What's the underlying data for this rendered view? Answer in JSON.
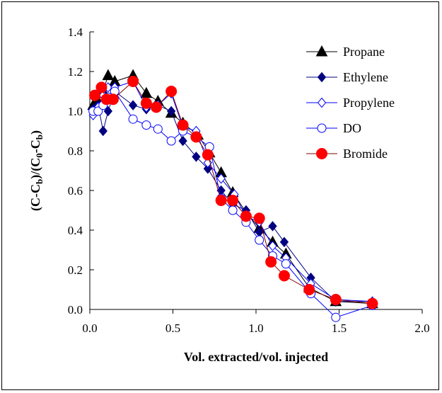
{
  "chart_data": {
    "type": "scatter",
    "title": "",
    "xlabel": "Vol. extracted/vol. injected",
    "ylabel_parts": [
      "(C-C",
      "b",
      ")/(C",
      "0",
      "-C",
      "b",
      ")"
    ],
    "xlim": [
      0,
      2
    ],
    "ylim": [
      0,
      1.4
    ],
    "x_ticks": [
      "0.0",
      "0.5",
      "1.0",
      "1.5",
      "2.0"
    ],
    "y_ticks": [
      "0.0",
      "0.2",
      "0.4",
      "0.6",
      "0.8",
      "1.0",
      "1.2",
      "1.4"
    ],
    "grid": false,
    "legend_position": "top-right",
    "series": [
      {
        "name": "Propane",
        "marker": "triangle",
        "color": "#000000",
        "filled": true,
        "points": [
          [
            0.02,
            1.03
          ],
          [
            0.05,
            1.05
          ],
          [
            0.08,
            1.1
          ],
          [
            0.11,
            1.18
          ],
          [
            0.15,
            1.15
          ],
          [
            0.26,
            1.18
          ],
          [
            0.34,
            1.09
          ],
          [
            0.41,
            1.05
          ],
          [
            0.49,
            0.99
          ],
          [
            0.56,
            0.94
          ],
          [
            0.65,
            0.88
          ],
          [
            0.72,
            0.79
          ],
          [
            0.79,
            0.69
          ],
          [
            0.86,
            0.59
          ],
          [
            0.94,
            0.49
          ],
          [
            1.02,
            0.41
          ],
          [
            1.1,
            0.34
          ],
          [
            1.18,
            0.28
          ],
          [
            1.32,
            0.11
          ],
          [
            1.48,
            0.04
          ],
          [
            1.7,
            0.03
          ]
        ]
      },
      {
        "name": "Ethylene",
        "marker": "diamond",
        "color": "#000080",
        "filled": true,
        "points": [
          [
            0.02,
            1.01
          ],
          [
            0.05,
            1.03
          ],
          [
            0.08,
            0.9
          ],
          [
            0.11,
            1.0
          ],
          [
            0.15,
            1.1
          ],
          [
            0.26,
            1.03
          ],
          [
            0.34,
            1.01
          ],
          [
            0.41,
            1.03
          ],
          [
            0.49,
            1.0
          ],
          [
            0.56,
            0.85
          ],
          [
            0.64,
            0.77
          ],
          [
            0.71,
            0.71
          ],
          [
            0.79,
            0.6
          ],
          [
            0.86,
            0.53
          ],
          [
            0.94,
            0.5
          ],
          [
            1.02,
            0.39
          ],
          [
            1.1,
            0.42
          ],
          [
            1.17,
            0.34
          ],
          [
            1.33,
            0.16
          ],
          [
            1.48,
            0.04
          ],
          [
            1.7,
            0.04
          ]
        ]
      },
      {
        "name": "Propylene",
        "marker": "diamond",
        "color": "#0000ff",
        "filled": false,
        "points": [
          [
            0.02,
            0.98
          ],
          [
            0.05,
            1.02
          ],
          [
            0.08,
            1.08
          ],
          [
            0.11,
            1.12
          ],
          [
            0.15,
            1.12
          ],
          [
            0.26,
            1.15
          ],
          [
            0.34,
            1.02
          ],
          [
            0.41,
            1.03
          ],
          [
            0.49,
            1.09
          ],
          [
            0.56,
            0.92
          ],
          [
            0.64,
            0.9
          ],
          [
            0.71,
            0.74
          ],
          [
            0.79,
            0.66
          ],
          [
            0.87,
            0.58
          ],
          [
            0.94,
            0.47
          ],
          [
            1.02,
            0.44
          ],
          [
            1.1,
            0.32
          ],
          [
            1.18,
            0.26
          ],
          [
            1.33,
            0.13
          ],
          [
            1.48,
            0.05
          ],
          [
            1.7,
            0.04
          ]
        ]
      },
      {
        "name": "DO",
        "marker": "circle",
        "color": "#0000ff",
        "filled": false,
        "points": [
          [
            0.02,
            1.0
          ],
          [
            0.05,
            1.0
          ],
          [
            0.08,
            1.03
          ],
          [
            0.11,
            1.07
          ],
          [
            0.15,
            1.1
          ],
          [
            0.26,
            0.96
          ],
          [
            0.34,
            0.93
          ],
          [
            0.41,
            0.91
          ],
          [
            0.49,
            0.85
          ],
          [
            0.56,
            0.9
          ],
          [
            0.64,
            0.87
          ],
          [
            0.72,
            0.82
          ],
          [
            0.79,
            0.56
          ],
          [
            0.86,
            0.5
          ],
          [
            0.94,
            0.44
          ],
          [
            1.02,
            0.35
          ],
          [
            1.1,
            0.27
          ],
          [
            1.18,
            0.23
          ],
          [
            1.33,
            0.08
          ],
          [
            1.48,
            -0.04
          ],
          [
            1.7,
            0.02
          ]
        ]
      },
      {
        "name": "Bromide",
        "marker": "circle",
        "color": "#ff0000",
        "filled": true,
        "line_color": "#800000",
        "points": [
          [
            0.03,
            1.08
          ],
          [
            0.07,
            1.12
          ],
          [
            0.1,
            1.06
          ],
          [
            0.14,
            1.06
          ],
          [
            0.26,
            1.15
          ],
          [
            0.34,
            1.04
          ],
          [
            0.4,
            1.02
          ],
          [
            0.49,
            1.1
          ],
          [
            0.56,
            0.93
          ],
          [
            0.64,
            0.87
          ],
          [
            0.71,
            0.78
          ],
          [
            0.79,
            0.55
          ],
          [
            0.86,
            0.55
          ],
          [
            0.94,
            0.47
          ],
          [
            1.02,
            0.46
          ],
          [
            1.09,
            0.24
          ],
          [
            1.17,
            0.17
          ],
          [
            1.32,
            0.1
          ],
          [
            1.48,
            0.05
          ],
          [
            1.7,
            0.03
          ]
        ]
      }
    ]
  }
}
